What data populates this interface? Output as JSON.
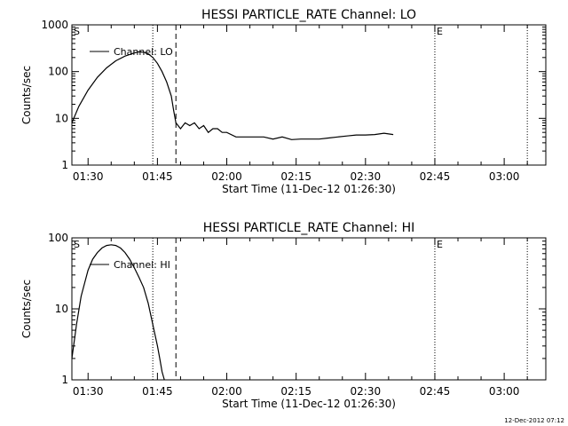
{
  "footer": {
    "timestamp": "12-Dec-2012 07:12"
  },
  "chart_data": [
    {
      "type": "line",
      "title": "HESSI PARTICLE_RATE Channel: LO",
      "xlabel": "Start Time (11-Dec-12 01:26:30)",
      "ylabel": "Counts/sec",
      "y_scale": "log",
      "ylim": [
        1,
        1000
      ],
      "xlim": [
        "01:26:30",
        "03:09:00"
      ],
      "x_ticks": [
        "01:30",
        "01:45",
        "02:00",
        "02:15",
        "02:30",
        "02:45",
        "03:00"
      ],
      "y_ticks": [
        "1",
        "10",
        "100",
        "1000"
      ],
      "legend": "top-left",
      "grid": false,
      "markers": {
        "start_label": "S",
        "end_label": "E"
      },
      "vertical_lines": [
        {
          "x": "01:44:00",
          "style": "dotted"
        },
        {
          "x": "01:49:00",
          "style": "dashed"
        },
        {
          "x": "02:45:00",
          "style": "dotted"
        },
        {
          "x": "03:05:00",
          "style": "dotted"
        }
      ],
      "series": [
        {
          "name": "Channel: LO",
          "x": [
            "01:26:30",
            "01:28:00",
            "01:30:00",
            "01:32:00",
            "01:34:00",
            "01:36:00",
            "01:38:00",
            "01:40:00",
            "01:41:00",
            "01:42:00",
            "01:43:00",
            "01:44:00",
            "01:45:00",
            "01:46:00",
            "01:47:00",
            "01:48:00",
            "01:48:30",
            "01:49:00",
            "01:50:00",
            "01:51:00",
            "01:52:00",
            "01:53:00",
            "01:54:00",
            "01:55:00",
            "01:56:00",
            "01:57:00",
            "01:58:00",
            "01:59:00",
            "02:00:00",
            "02:02:00",
            "02:04:00",
            "02:06:00",
            "02:08:00",
            "02:10:00",
            "02:12:00",
            "02:14:00",
            "02:16:00",
            "02:18:00",
            "02:20:00",
            "02:22:00",
            "02:24:00",
            "02:26:00",
            "02:28:00",
            "02:30:00",
            "02:32:00",
            "02:34:00",
            "02:36:00"
          ],
          "y": [
            8,
            18,
            40,
            75,
            120,
            170,
            215,
            250,
            265,
            260,
            240,
            200,
            150,
            100,
            60,
            30,
            15,
            8,
            6,
            8,
            7,
            8,
            6,
            7,
            5,
            6,
            6,
            5,
            5,
            4,
            4,
            4,
            4,
            3.6,
            4,
            3.5,
            3.6,
            3.6,
            3.6,
            3.8,
            4,
            4.2,
            4.4,
            4.4,
            4.5,
            4.8,
            4.5
          ]
        }
      ]
    },
    {
      "type": "line",
      "title": "HESSI PARTICLE_RATE Channel: HI",
      "xlabel": "Start Time (11-Dec-12 01:26:30)",
      "ylabel": "Counts/sec",
      "y_scale": "log",
      "ylim": [
        1,
        100
      ],
      "xlim": [
        "01:26:30",
        "03:09:00"
      ],
      "x_ticks": [
        "01:30",
        "01:45",
        "02:00",
        "02:15",
        "02:30",
        "02:45",
        "03:00"
      ],
      "y_ticks": [
        "1",
        "10",
        "100"
      ],
      "legend": "top-left",
      "grid": false,
      "markers": {
        "start_label": "S",
        "end_label": "E"
      },
      "vertical_lines": [
        {
          "x": "01:44:00",
          "style": "dotted"
        },
        {
          "x": "01:49:00",
          "style": "dashed"
        },
        {
          "x": "02:45:00",
          "style": "dotted"
        },
        {
          "x": "03:05:00",
          "style": "dotted"
        }
      ],
      "series": [
        {
          "name": "Channel: HI",
          "x": [
            "01:26:30",
            "01:27:30",
            "01:28:30",
            "01:30:00",
            "01:31:00",
            "01:32:00",
            "01:33:00",
            "01:34:00",
            "01:35:00",
            "01:36:00",
            "01:37:00",
            "01:38:00",
            "01:39:00",
            "01:40:00",
            "01:41:00",
            "01:42:00",
            "01:43:00",
            "01:44:00",
            "01:45:00",
            "01:45:30",
            "01:46:00",
            "01:46:30"
          ],
          "y": [
            2,
            6,
            15,
            35,
            50,
            62,
            72,
            78,
            80,
            78,
            72,
            62,
            50,
            38,
            28,
            20,
            12,
            6,
            3,
            2,
            1.3,
            1
          ]
        }
      ]
    }
  ]
}
